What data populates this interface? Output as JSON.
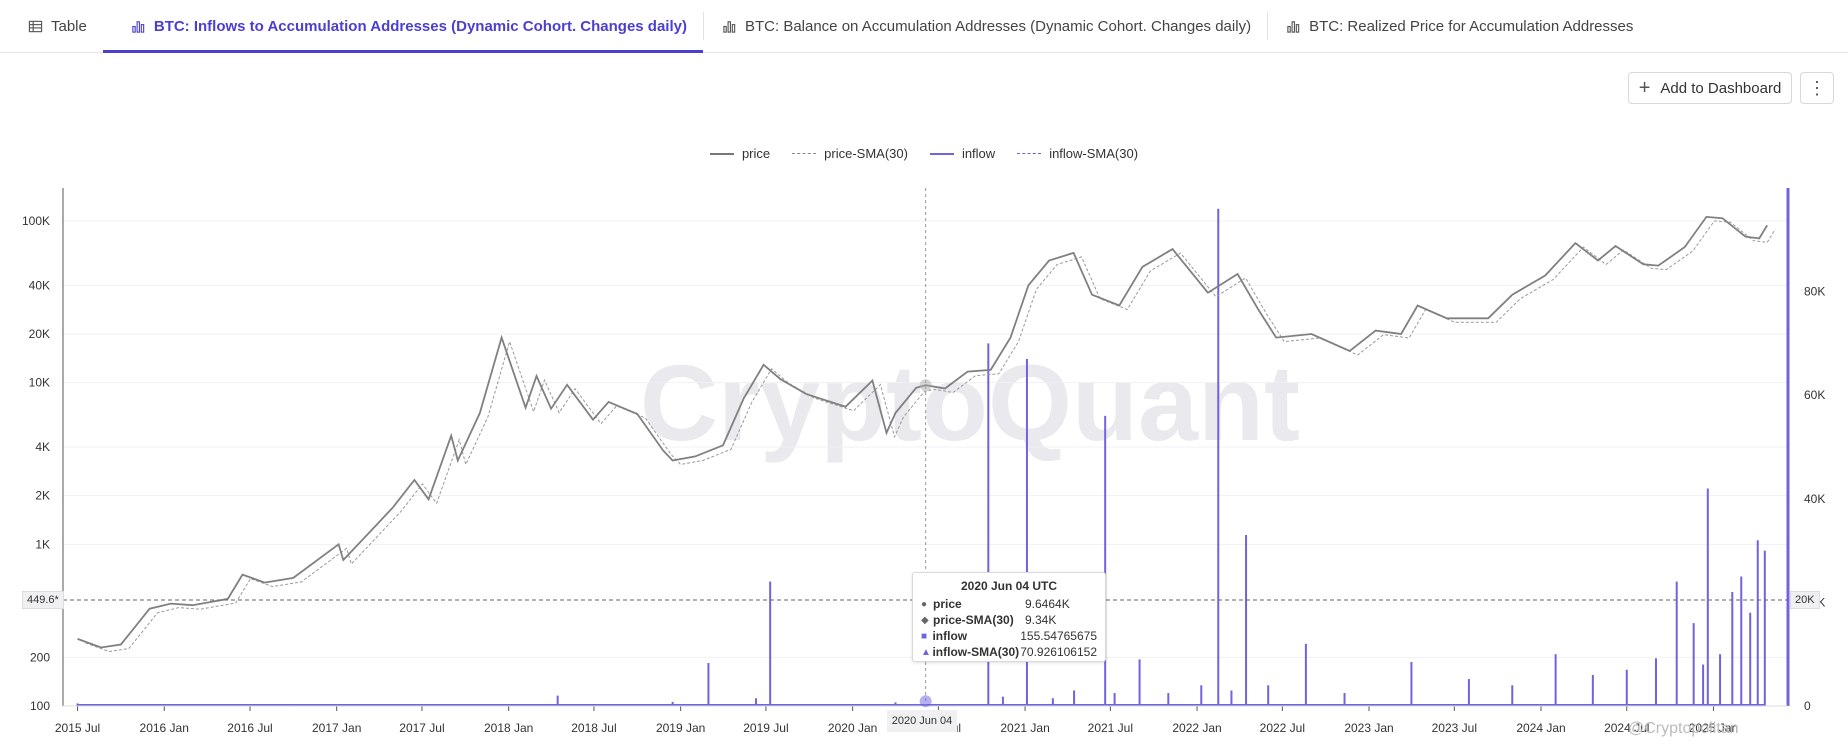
{
  "tabs": [
    {
      "label": "Table",
      "icon": "table-icon",
      "active": false
    },
    {
      "label": "BTC: Inflows to Accumulation Addresses (Dynamic Cohort. Changes daily)",
      "icon": "bar-chart-icon",
      "active": true
    },
    {
      "label": "BTC: Balance on Accumulation Addresses (Dynamic Cohort. Changes daily)",
      "icon": "bar-chart-icon",
      "active": false
    },
    {
      "label": "BTC: Realized Price for Accumulation Addresses",
      "icon": "bar-chart-icon",
      "active": false
    }
  ],
  "toolbar": {
    "add_label": "Add to Dashboard",
    "more_label": "⋮"
  },
  "legend": [
    {
      "name": "price",
      "style": "solid",
      "color": "#888888"
    },
    {
      "name": "price-SMA(30)",
      "style": "dashed",
      "color": "#999999"
    },
    {
      "name": "inflow",
      "style": "solid",
      "color": "#6f63e0"
    },
    {
      "name": "inflow-SMA(30)",
      "style": "dashed",
      "color": "#6f63e0"
    }
  ],
  "watermark": "CryptoQuant",
  "crosshair": {
    "x_label": "2020 Jun 04",
    "y_label": "449.6*",
    "y2_label": "20K"
  },
  "tooltip": {
    "title": "2020 Jun 04 UTC",
    "rows": [
      {
        "marker": "●",
        "name": "price",
        "value": "9.6464K"
      },
      {
        "marker": "◆",
        "name": "price-SMA(30)",
        "value": "9.34K"
      },
      {
        "marker": "■",
        "name": "inflow",
        "value": "155.54765675"
      },
      {
        "marker": "▲",
        "name": "inflow-SMA(30)",
        "value": "70.926106152"
      }
    ]
  },
  "credit": "@Cryptopolitan",
  "chart_data": {
    "type": "line",
    "y_scale": "log",
    "y_ticks": [
      "100K",
      "40K",
      "20K",
      "10K",
      "4K",
      "2K",
      "1K",
      "200",
      "100"
    ],
    "y_tick_values": [
      100000,
      40000,
      20000,
      10000,
      4000,
      2000,
      1000,
      200,
      100
    ],
    "y2_ticks": [
      "80K",
      "60K",
      "40K",
      "20K",
      "0"
    ],
    "y2_tick_values": [
      80000,
      60000,
      40000,
      20000,
      0
    ],
    "ylim": [
      100,
      160000
    ],
    "y2lim": [
      0,
      100000
    ],
    "x_ticks": [
      "2015 Jul",
      "2016 Jan",
      "2016 Jul",
      "2017 Jan",
      "2017 Jul",
      "2018 Jan",
      "2018 Jul",
      "2019 Jan",
      "2019 Jul",
      "2020 Jan",
      "2020 Jul",
      "2021 Jan",
      "2021 Jul",
      "2022 Jan",
      "2022 Jul",
      "2023 Jan",
      "2023 Jul",
      "2024 Jan",
      "2024 Jul",
      "2025 Jan"
    ],
    "xlim": [
      "2015-06-15",
      "2025-05-01"
    ],
    "series": [
      {
        "name": "price",
        "color": "#888888",
        "x": [
          "2015-07-01",
          "2015-08-20",
          "2015-10-01",
          "2015-12-01",
          "2016-01-15",
          "2016-03-01",
          "2016-05-15",
          "2016-06-15",
          "2016-08-01",
          "2016-10-01",
          "2017-01-05",
          "2017-01-15",
          "2017-03-01",
          "2017-05-01",
          "2017-06-15",
          "2017-07-15",
          "2017-09-01",
          "2017-09-15",
          "2017-11-01",
          "2017-12-17",
          "2018-02-06",
          "2018-03-01",
          "2018-04-01",
          "2018-05-05",
          "2018-06-29",
          "2018-08-01",
          "2018-10-01",
          "2018-11-25",
          "2018-12-15",
          "2019-02-01",
          "2019-04-01",
          "2019-05-15",
          "2019-06-26",
          "2019-08-01",
          "2019-09-25",
          "2019-12-17",
          "2020-02-12",
          "2020-03-13",
          "2020-04-01",
          "2020-05-15",
          "2020-06-04",
          "2020-07-15",
          "2020-09-01",
          "2020-10-20",
          "2020-12-01",
          "2021-01-08",
          "2021-02-21",
          "2021-04-14",
          "2021-05-23",
          "2021-07-20",
          "2021-09-07",
          "2021-11-10",
          "2022-01-24",
          "2022-03-28",
          "2022-05-12",
          "2022-06-18",
          "2022-09-01",
          "2022-11-21",
          "2023-01-15",
          "2023-03-10",
          "2023-04-14",
          "2023-06-15",
          "2023-09-11",
          "2023-11-01",
          "2024-01-10",
          "2024-03-14",
          "2024-05-01",
          "2024-06-07",
          "2024-08-05",
          "2024-09-06",
          "2024-11-01",
          "2024-12-17",
          "2025-01-20",
          "2025-03-10",
          "2025-04-08",
          "2025-04-25"
        ],
        "y": [
          260,
          230,
          240,
          400,
          430,
          420,
          460,
          650,
          580,
          620,
          1000,
          800,
          1100,
          1700,
          2500,
          1900,
          4700,
          3300,
          6500,
          19000,
          7000,
          11000,
          6900,
          9700,
          5900,
          7600,
          6400,
          3800,
          3300,
          3500,
          4100,
          8000,
          12900,
          10500,
          8500,
          7100,
          10300,
          4900,
          6500,
          9300,
          9646,
          9200,
          11700,
          12000,
          19000,
          40000,
          57000,
          63500,
          35000,
          30000,
          52000,
          67000,
          36000,
          47000,
          28000,
          19000,
          20000,
          15700,
          21000,
          20000,
          30000,
          25000,
          25000,
          35000,
          46000,
          73000,
          57000,
          70000,
          54000,
          53000,
          69000,
          106000,
          104000,
          80000,
          78000,
          94000
        ]
      },
      {
        "name": "inflow",
        "color": "#6f63e0",
        "x": [
          "2015-07-01",
          "2016-10-01",
          "2018-04-15",
          "2018-12-15",
          "2019-03-01",
          "2019-06-10",
          "2019-07-10",
          "2020-04-01",
          "2020-06-04",
          "2020-10-15",
          "2020-11-15",
          "2021-01-05",
          "2021-03-01",
          "2021-04-15",
          "2021-06-20",
          "2021-07-10",
          "2021-09-01",
          "2021-11-01",
          "2022-01-10",
          "2022-02-15",
          "2022-03-15",
          "2022-04-15",
          "2022-06-01",
          "2022-08-20",
          "2022-11-10",
          "2023-04-01",
          "2023-08-01",
          "2023-11-01",
          "2024-02-01",
          "2024-04-20",
          "2024-07-01",
          "2024-09-01",
          "2024-10-15",
          "2024-11-20",
          "2024-12-10",
          "2024-12-20",
          "2025-01-15",
          "2025-02-10",
          "2025-03-01",
          "2025-03-20",
          "2025-04-05",
          "2025-04-20"
        ],
        "y": [
          500,
          300,
          2000,
          800,
          8300,
          1500,
          24000,
          700,
          155.5,
          70000,
          1800,
          67000,
          1500,
          3000,
          56000,
          2500,
          9000,
          2500,
          4000,
          96000,
          3000,
          33000,
          4000,
          12000,
          2500,
          8500,
          5200,
          4000,
          10000,
          6000,
          7000,
          9200,
          24000,
          16000,
          8000,
          42000,
          10000,
          22000,
          25000,
          18000,
          32000,
          30000
        ]
      }
    ]
  }
}
